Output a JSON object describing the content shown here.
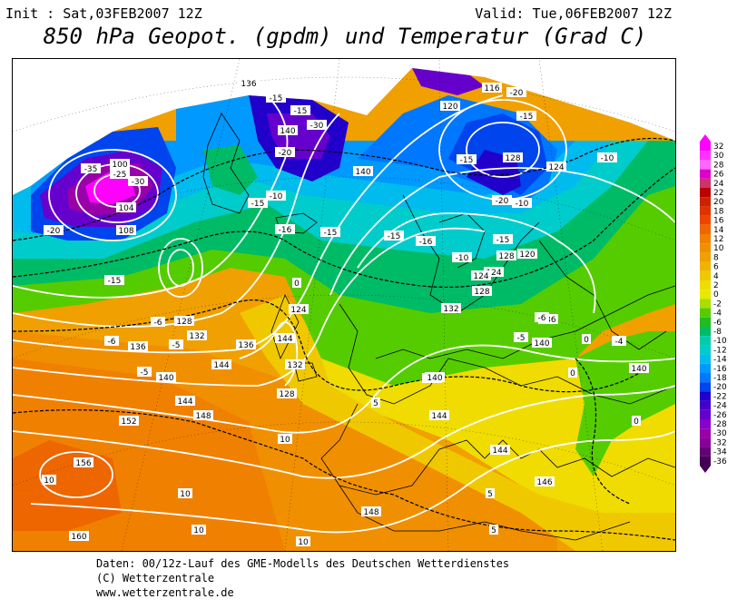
{
  "header": {
    "init": "Init : Sat,03FEB2007 12Z",
    "valid": "Valid: Tue,06FEB2007 12Z",
    "title": "850 hPa Geopot. (gpdm) und Temperatur (Grad C)"
  },
  "footer": {
    "line1": "Daten: 00/12z-Lauf des GME-Modells des Deutschen Wetterdienstes",
    "line2": "(C) Wetterzentrale",
    "line3": "www.wetterzentrale.de"
  },
  "legend": {
    "values": [
      "32",
      "30",
      "28",
      "26",
      "24",
      "22",
      "20",
      "18",
      "16",
      "14",
      "12",
      "10",
      "8",
      "6",
      "4",
      "2",
      "0",
      "-2",
      "-4",
      "-6",
      "-8",
      "-10",
      "-12",
      "-14",
      "-16",
      "-18",
      "-20",
      "-22",
      "-24",
      "-26",
      "-28",
      "-30",
      "-32",
      "-34",
      "-36"
    ],
    "colors": [
      "#ff00ff",
      "#ff33ff",
      "#ff66ff",
      "#dd00cc",
      "#cc3366",
      "#bb0000",
      "#cc2200",
      "#dd3300",
      "#ee4400",
      "#ee6600",
      "#f08000",
      "#f09000",
      "#f0a000",
      "#f0b400",
      "#f0c800",
      "#f0dc00",
      "#e8e800",
      "#aadd00",
      "#55cc00",
      "#22bb22",
      "#00bb66",
      "#00ccaa",
      "#00cccc",
      "#00bbee",
      "#0099ff",
      "#0077ff",
      "#0044ee",
      "#2200cc",
      "#4400cc",
      "#6600cc",
      "#8800cc",
      "#9900aa",
      "#880099",
      "#660077",
      "#440055"
    ]
  },
  "geopotential_labels": [
    "136",
    "-15",
    "140",
    "-15",
    "-30",
    "-35",
    "-25",
    "-30",
    "100",
    "104",
    "108",
    "-20",
    "-15",
    "128",
    "132",
    "144",
    "136",
    "-20",
    "-10",
    "-15",
    "-16",
    "-15",
    "-15",
    "-15",
    "140",
    "128",
    "124",
    "120",
    "-15",
    "-10",
    "116",
    "-20",
    "-20",
    "-10",
    "128",
    "124",
    "-15",
    "-10",
    "-16",
    "120",
    "124",
    "128",
    "132",
    "136",
    "140",
    "140",
    "-6",
    "-6",
    "144",
    "128",
    "124",
    "132",
    "136",
    "140",
    "144",
    "148",
    "152",
    "156",
    "160",
    "10",
    "10",
    "10",
    "10",
    "10",
    "5",
    "5",
    "5",
    "0",
    "0",
    "0",
    "0",
    "-5",
    "-5",
    "-5",
    "144",
    "146",
    "148",
    "148",
    "144",
    "140",
    "140",
    "-6",
    "-4"
  ],
  "map": {
    "colors": {
      "land_border": "#000000",
      "isohypse": "#ffffff",
      "isotherm": "#000000"
    }
  }
}
